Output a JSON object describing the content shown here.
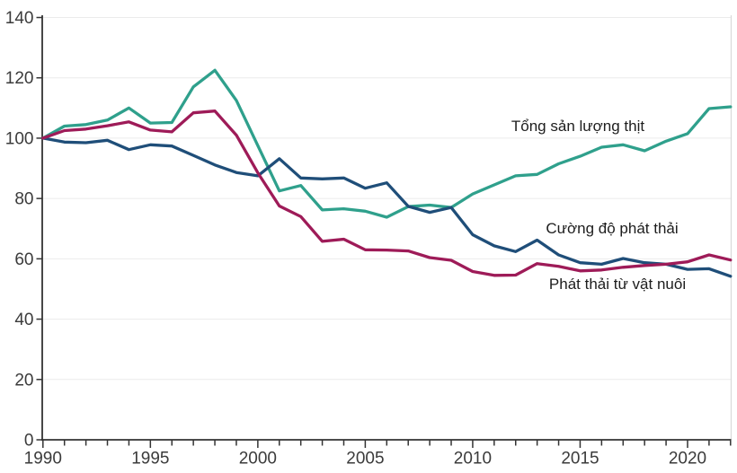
{
  "chart": {
    "background": "#ffffff",
    "axis_color": "#333333",
    "grid_color": "#ebebeb",
    "right_border_color": "#d9d9d9",
    "tick_label_color": "#3b3b3b",
    "annotation_color": "#1d1d1d"
  },
  "chart_data": {
    "type": "line",
    "title": "",
    "xlabel": "",
    "ylabel": "",
    "x_range": [
      1990,
      2022
    ],
    "ylim": [
      0,
      140
    ],
    "grid": "horizontal",
    "legend": "inline-labels",
    "xticks": [
      1990,
      1995,
      2000,
      2005,
      2010,
      2015,
      2020
    ],
    "yticks": [
      0,
      20,
      40,
      60,
      80,
      100,
      120,
      140
    ],
    "x": [
      1990,
      1991,
      1992,
      1993,
      1994,
      1995,
      1996,
      1997,
      1998,
      1999,
      2000,
      2001,
      2002,
      2003,
      2004,
      2005,
      2006,
      2007,
      2008,
      2009,
      2010,
      2011,
      2012,
      2013,
      2014,
      2015,
      2016,
      2017,
      2018,
      2019,
      2020,
      2021,
      2022
    ],
    "series": [
      {
        "name": "Tổng sản lượng thịt",
        "color": "#2FA08C",
        "values": [
          100,
          104,
          104.5,
          106,
          110,
          105,
          105.2,
          117,
          122.5,
          112.5,
          97.5,
          82.5,
          84.3,
          76.2,
          76.6,
          75.8,
          73.8,
          77.3,
          77.8,
          77,
          81.5,
          84.5,
          87.5,
          88,
          91.5,
          94,
          97,
          97.8,
          95.8,
          99,
          101.5,
          109.8,
          110.4
        ]
      },
      {
        "name": "Cường độ phát thải",
        "color": "#1F4E79",
        "values": [
          100,
          98.7,
          98.5,
          99.3,
          96.2,
          97.8,
          97.4,
          94.3,
          91.1,
          88.6,
          87.5,
          93.2,
          86.8,
          86.5,
          86.8,
          83.4,
          85.2,
          77.4,
          75.4,
          77,
          68,
          64.3,
          62.4,
          66.2,
          61.3,
          58.7,
          58.2,
          60.1,
          58.7,
          58.2,
          56.5,
          56.7,
          54.2
        ]
      },
      {
        "name": "Phát thải từ vật nuôi",
        "color": "#9E1B58",
        "values": [
          100,
          102.5,
          103,
          104.1,
          105.4,
          102.7,
          102.1,
          108.4,
          109,
          101,
          88.5,
          77.5,
          74,
          65.8,
          66.5,
          63,
          62.9,
          62.6,
          60.4,
          59.5,
          55.8,
          54.5,
          54.6,
          58.4,
          57.5,
          56,
          56.3,
          57.2,
          57.8,
          58.2,
          59,
          61.3,
          59.6
        ]
      }
    ]
  }
}
